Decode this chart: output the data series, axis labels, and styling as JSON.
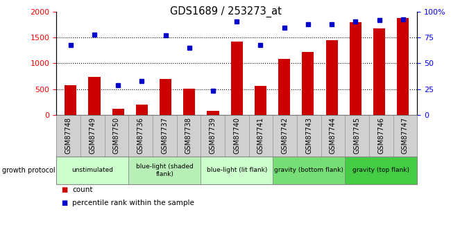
{
  "title": "GDS1689 / 253273_at",
  "samples": [
    "GSM87748",
    "GSM87749",
    "GSM87750",
    "GSM87736",
    "GSM87737",
    "GSM87738",
    "GSM87739",
    "GSM87740",
    "GSM87741",
    "GSM87742",
    "GSM87743",
    "GSM87744",
    "GSM87745",
    "GSM87746",
    "GSM87747"
  ],
  "counts": [
    580,
    740,
    120,
    200,
    700,
    510,
    80,
    1420,
    560,
    1080,
    1220,
    1450,
    1800,
    1680,
    1880
  ],
  "percentiles": [
    68,
    78,
    29,
    33,
    77,
    65,
    23,
    91,
    68,
    85,
    88,
    88,
    91,
    92,
    93
  ],
  "ylim_left": [
    0,
    2000
  ],
  "ylim_right": [
    0,
    100
  ],
  "yticks_left": [
    0,
    500,
    1000,
    1500,
    2000
  ],
  "yticks_right": [
    0,
    25,
    50,
    75,
    100
  ],
  "bar_color": "#cc0000",
  "dot_color": "#0000cc",
  "groups_info": [
    {
      "label": "unstimulated",
      "start": 0,
      "end": 2,
      "color": "#ccffcc"
    },
    {
      "label": "blue-light (shaded\nflank)",
      "start": 3,
      "end": 5,
      "color": "#b8f0b8"
    },
    {
      "label": "blue-light (lit flank)",
      "start": 6,
      "end": 8,
      "color": "#ccffcc"
    },
    {
      "label": "gravity (bottom flank)",
      "start": 9,
      "end": 11,
      "color": "#77dd77"
    },
    {
      "label": "gravity (top flank)",
      "start": 12,
      "end": 14,
      "color": "#44cc44"
    }
  ],
  "legend_count_label": "count",
  "legend_pct_label": "percentile rank within the sample",
  "growth_protocol_label": "growth protocol",
  "plot_bg": "#ffffff",
  "xtick_bg": "#d0d0d0",
  "tick_label_fontsize": 7,
  "bar_width": 0.5
}
